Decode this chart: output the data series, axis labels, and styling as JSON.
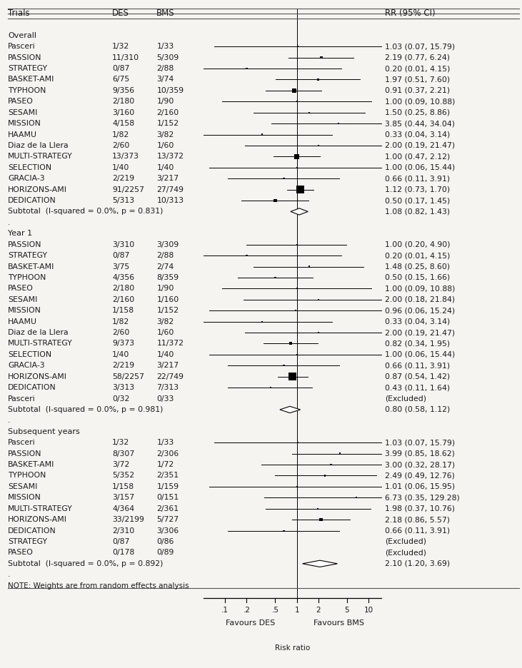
{
  "bg_color": "#f5f4f0",
  "text_color": "#1a1a1a",
  "sections": [
    {
      "label": "Overall",
      "rows": [
        {
          "trial": "Pasceri",
          "des": "1/32",
          "bms": "1/33",
          "rr": 1.03,
          "lo": 0.07,
          "hi": 15.79,
          "rr_text": "1.03 (0.07, 15.79)",
          "weight": 0.5,
          "excluded": false
        },
        {
          "trial": "PASSION",
          "des": "11/310",
          "bms": "5/309",
          "rr": 2.19,
          "lo": 0.77,
          "hi": 6.24,
          "rr_text": "2.19 (0.77, 6.24)",
          "weight": 3.0,
          "excluded": false
        },
        {
          "trial": "STRATEGY",
          "des": "0/87",
          "bms": "2/88",
          "rr": 0.2,
          "lo": 0.01,
          "hi": 4.15,
          "rr_text": "0.20 (0.01, 4.15)",
          "weight": 0.5,
          "excluded": false
        },
        {
          "trial": "BASKET-AMI",
          "des": "6/75",
          "bms": "3/74",
          "rr": 1.97,
          "lo": 0.51,
          "hi": 7.6,
          "rr_text": "1.97 (0.51, 7.60)",
          "weight": 2.5,
          "excluded": false
        },
        {
          "trial": "TYPHOON",
          "des": "9/356",
          "bms": "10/359",
          "rr": 0.91,
          "lo": 0.37,
          "hi": 2.21,
          "rr_text": "0.91 (0.37, 2.21)",
          "weight": 5.0,
          "excluded": false
        },
        {
          "trial": "PASEO",
          "des": "2/180",
          "bms": "1/90",
          "rr": 1.0,
          "lo": 0.09,
          "hi": 10.88,
          "rr_text": "1.00 (0.09, 10.88)",
          "weight": 0.8,
          "excluded": false
        },
        {
          "trial": "SESAMI",
          "des": "3/160",
          "bms": "2/160",
          "rr": 1.5,
          "lo": 0.25,
          "hi": 8.86,
          "rr_text": "1.50 (0.25, 8.86)",
          "weight": 1.5,
          "excluded": false
        },
        {
          "trial": "MISSION",
          "des": "4/158",
          "bms": "1/152",
          "rr": 3.85,
          "lo": 0.44,
          "hi": 34.04,
          "rr_text": "3.85 (0.44, 34.04)",
          "weight": 1.0,
          "excluded": false
        },
        {
          "trial": "HAAMU",
          "des": "1/82",
          "bms": "3/82",
          "rr": 0.33,
          "lo": 0.04,
          "hi": 3.14,
          "rr_text": "0.33 (0.04, 3.14)",
          "weight": 0.8,
          "excluded": false
        },
        {
          "trial": "Diaz de la Llera",
          "des": "2/60",
          "bms": "1/60",
          "rr": 2.0,
          "lo": 0.19,
          "hi": 21.47,
          "rr_text": "2.00 (0.19, 21.47)",
          "weight": 0.8,
          "excluded": false
        },
        {
          "trial": "MULTI-STRATEGY",
          "des": "13/373",
          "bms": "13/372",
          "rr": 1.0,
          "lo": 0.47,
          "hi": 2.12,
          "rr_text": "1.00 (0.47, 2.12)",
          "weight": 6.0,
          "excluded": false
        },
        {
          "trial": "SELECTION",
          "des": "1/40",
          "bms": "1/40",
          "rr": 1.0,
          "lo": 0.06,
          "hi": 15.44,
          "rr_text": "1.00 (0.06, 15.44)",
          "weight": 0.5,
          "excluded": false
        },
        {
          "trial": "GRACIA-3",
          "des": "2/219",
          "bms": "3/217",
          "rr": 0.66,
          "lo": 0.11,
          "hi": 3.91,
          "rr_text": "0.66 (0.11, 3.91)",
          "weight": 1.5,
          "excluded": false
        },
        {
          "trial": "HORIZONS-AMI",
          "des": "91/2257",
          "bms": "27/749",
          "rr": 1.12,
          "lo": 0.73,
          "hi": 1.7,
          "rr_text": "1.12 (0.73, 1.70)",
          "weight": 15.0,
          "excluded": false
        },
        {
          "trial": "DEDICATION",
          "des": "5/313",
          "bms": "10/313",
          "rr": 0.5,
          "lo": 0.17,
          "hi": 1.45,
          "rr_text": "0.50 (0.17, 1.45)",
          "weight": 4.0,
          "excluded": false
        }
      ],
      "subtotal": {
        "text": "Subtotal  (I-squared = 0.0%, p = 0.831)",
        "rr": 1.08,
        "lo": 0.82,
        "hi": 1.43,
        "rr_text": "1.08 (0.82, 1.43)"
      }
    },
    {
      "label": "Year 1",
      "rows": [
        {
          "trial": "PASSION",
          "des": "3/310",
          "bms": "3/309",
          "rr": 1.0,
          "lo": 0.2,
          "hi": 4.9,
          "rr_text": "1.00 (0.20, 4.90)",
          "weight": 1.5,
          "excluded": false
        },
        {
          "trial": "STRATEGY",
          "des": "0/87",
          "bms": "2/88",
          "rr": 0.2,
          "lo": 0.01,
          "hi": 4.15,
          "rr_text": "0.20 (0.01, 4.15)",
          "weight": 0.5,
          "excluded": false
        },
        {
          "trial": "BASKET-AMI",
          "des": "3/75",
          "bms": "2/74",
          "rr": 1.48,
          "lo": 0.25,
          "hi": 8.6,
          "rr_text": "1.48 (0.25, 8.60)",
          "weight": 1.5,
          "excluded": false
        },
        {
          "trial": "TYPHOON",
          "des": "4/356",
          "bms": "8/359",
          "rr": 0.5,
          "lo": 0.15,
          "hi": 1.66,
          "rr_text": "0.50 (0.15, 1.66)",
          "weight": 2.0,
          "excluded": false
        },
        {
          "trial": "PASEO",
          "des": "2/180",
          "bms": "1/90",
          "rr": 1.0,
          "lo": 0.09,
          "hi": 10.88,
          "rr_text": "1.00 (0.09, 10.88)",
          "weight": 0.8,
          "excluded": false
        },
        {
          "trial": "SESAMI",
          "des": "2/160",
          "bms": "1/160",
          "rr": 2.0,
          "lo": 0.18,
          "hi": 21.84,
          "rr_text": "2.00 (0.18, 21.84)",
          "weight": 0.7,
          "excluded": false
        },
        {
          "trial": "MISSION",
          "des": "1/158",
          "bms": "1/152",
          "rr": 0.96,
          "lo": 0.06,
          "hi": 15.24,
          "rr_text": "0.96 (0.06, 15.24)",
          "weight": 0.5,
          "excluded": false
        },
        {
          "trial": "HAAMU",
          "des": "1/82",
          "bms": "3/82",
          "rr": 0.33,
          "lo": 0.04,
          "hi": 3.14,
          "rr_text": "0.33 (0.04, 3.14)",
          "weight": 0.8,
          "excluded": false
        },
        {
          "trial": "Diaz de la Llera",
          "des": "2/60",
          "bms": "1/60",
          "rr": 2.0,
          "lo": 0.19,
          "hi": 21.47,
          "rr_text": "2.00 (0.19, 21.47)",
          "weight": 0.8,
          "excluded": false
        },
        {
          "trial": "MULTI-STRATEGY",
          "des": "9/373",
          "bms": "11/372",
          "rr": 0.82,
          "lo": 0.34,
          "hi": 1.95,
          "rr_text": "0.82 (0.34, 1.95)",
          "weight": 3.5,
          "excluded": false
        },
        {
          "trial": "SELECTION",
          "des": "1/40",
          "bms": "1/40",
          "rr": 1.0,
          "lo": 0.06,
          "hi": 15.44,
          "rr_text": "1.00 (0.06, 15.44)",
          "weight": 0.5,
          "excluded": false
        },
        {
          "trial": "GRACIA-3",
          "des": "2/219",
          "bms": "3/217",
          "rr": 0.66,
          "lo": 0.11,
          "hi": 3.91,
          "rr_text": "0.66 (0.11, 3.91)",
          "weight": 1.5,
          "excluded": false
        },
        {
          "trial": "HORIZONS-AMI",
          "des": "58/2257",
          "bms": "22/749",
          "rr": 0.87,
          "lo": 0.54,
          "hi": 1.42,
          "rr_text": "0.87 (0.54, 1.42)",
          "weight": 10.0,
          "excluded": false
        },
        {
          "trial": "DEDICATION",
          "des": "3/313",
          "bms": "7/313",
          "rr": 0.43,
          "lo": 0.11,
          "hi": 1.64,
          "rr_text": "0.43 (0.11, 1.64)",
          "weight": 2.0,
          "excluded": false
        },
        {
          "trial": "Pasceri",
          "des": "0/32",
          "bms": "0/33",
          "rr": null,
          "lo": null,
          "hi": null,
          "rr_text": "(Excluded)",
          "weight": 0,
          "excluded": true
        }
      ],
      "subtotal": {
        "text": "Subtotal  (I-squared = 0.0%, p = 0.981)",
        "rr": 0.8,
        "lo": 0.58,
        "hi": 1.12,
        "rr_text": "0.80 (0.58, 1.12)"
      }
    },
    {
      "label": "Subsequent years",
      "rows": [
        {
          "trial": "Pasceri",
          "des": "1/32",
          "bms": "1/33",
          "rr": 1.03,
          "lo": 0.07,
          "hi": 15.79,
          "rr_text": "1.03 (0.07, 15.79)",
          "weight": 0.5,
          "excluded": false
        },
        {
          "trial": "PASSION",
          "des": "8/307",
          "bms": "2/306",
          "rr": 3.99,
          "lo": 0.85,
          "hi": 18.62,
          "rr_text": "3.99 (0.85, 18.62)",
          "weight": 2.0,
          "excluded": false
        },
        {
          "trial": "BASKET-AMI",
          "des": "3/72",
          "bms": "1/72",
          "rr": 3.0,
          "lo": 0.32,
          "hi": 28.17,
          "rr_text": "3.00 (0.32, 28.17)",
          "weight": 0.8,
          "excluded": false
        },
        {
          "trial": "TYPHOON",
          "des": "5/352",
          "bms": "2/351",
          "rr": 2.49,
          "lo": 0.49,
          "hi": 12.76,
          "rr_text": "2.49 (0.49, 12.76)",
          "weight": 1.5,
          "excluded": false
        },
        {
          "trial": "SESAMI",
          "des": "1/158",
          "bms": "1/159",
          "rr": 1.01,
          "lo": 0.06,
          "hi": 15.95,
          "rr_text": "1.01 (0.06, 15.95)",
          "weight": 0.5,
          "excluded": false
        },
        {
          "trial": "MISSION",
          "des": "3/157",
          "bms": "0/151",
          "rr": 6.73,
          "lo": 0.35,
          "hi": 129.28,
          "rr_text": "6.73 (0.35, 129.28)",
          "weight": 0.5,
          "excluded": false
        },
        {
          "trial": "MULTI-STRATEGY",
          "des": "4/364",
          "bms": "2/361",
          "rr": 1.98,
          "lo": 0.37,
          "hi": 10.76,
          "rr_text": "1.98 (0.37, 10.76)",
          "weight": 1.2,
          "excluded": false
        },
        {
          "trial": "HORIZONS-AMI",
          "des": "33/2199",
          "bms": "5/727",
          "rr": 2.18,
          "lo": 0.86,
          "hi": 5.57,
          "rr_text": "2.18 (0.86, 5.57)",
          "weight": 4.0,
          "excluded": false
        },
        {
          "trial": "DEDICATION",
          "des": "2/310",
          "bms": "3/306",
          "rr": 0.66,
          "lo": 0.11,
          "hi": 3.91,
          "rr_text": "0.66 (0.11, 3.91)",
          "weight": 1.2,
          "excluded": false
        },
        {
          "trial": "STRATEGY",
          "des": "0/87",
          "bms": "0/86",
          "rr": null,
          "lo": null,
          "hi": null,
          "rr_text": "(Excluded)",
          "weight": 0,
          "excluded": true
        },
        {
          "trial": "PASEO",
          "des": "0/178",
          "bms": "0/89",
          "rr": null,
          "lo": null,
          "hi": null,
          "rr_text": "(Excluded)",
          "weight": 0,
          "excluded": true
        }
      ],
      "subtotal": {
        "text": "Subtotal  (I-squared = 0.0%, p = 0.892)",
        "rr": 2.1,
        "lo": 1.2,
        "hi": 3.69,
        "rr_text": "2.10 (1.20, 3.69)"
      }
    }
  ],
  "note": "NOTE: Weights are from random effects analysis",
  "xscale_ticks": [
    0.1,
    0.2,
    0.5,
    1.0,
    2.0,
    5.0,
    10.0
  ],
  "xscale_labels": [
    ".1",
    ".2",
    ".5",
    "1",
    "2",
    "5",
    "10"
  ],
  "xlabel_left": "Favours DES",
  "xlabel_right": "Favours BMS",
  "xlabel_bottom": "Risk ratio"
}
